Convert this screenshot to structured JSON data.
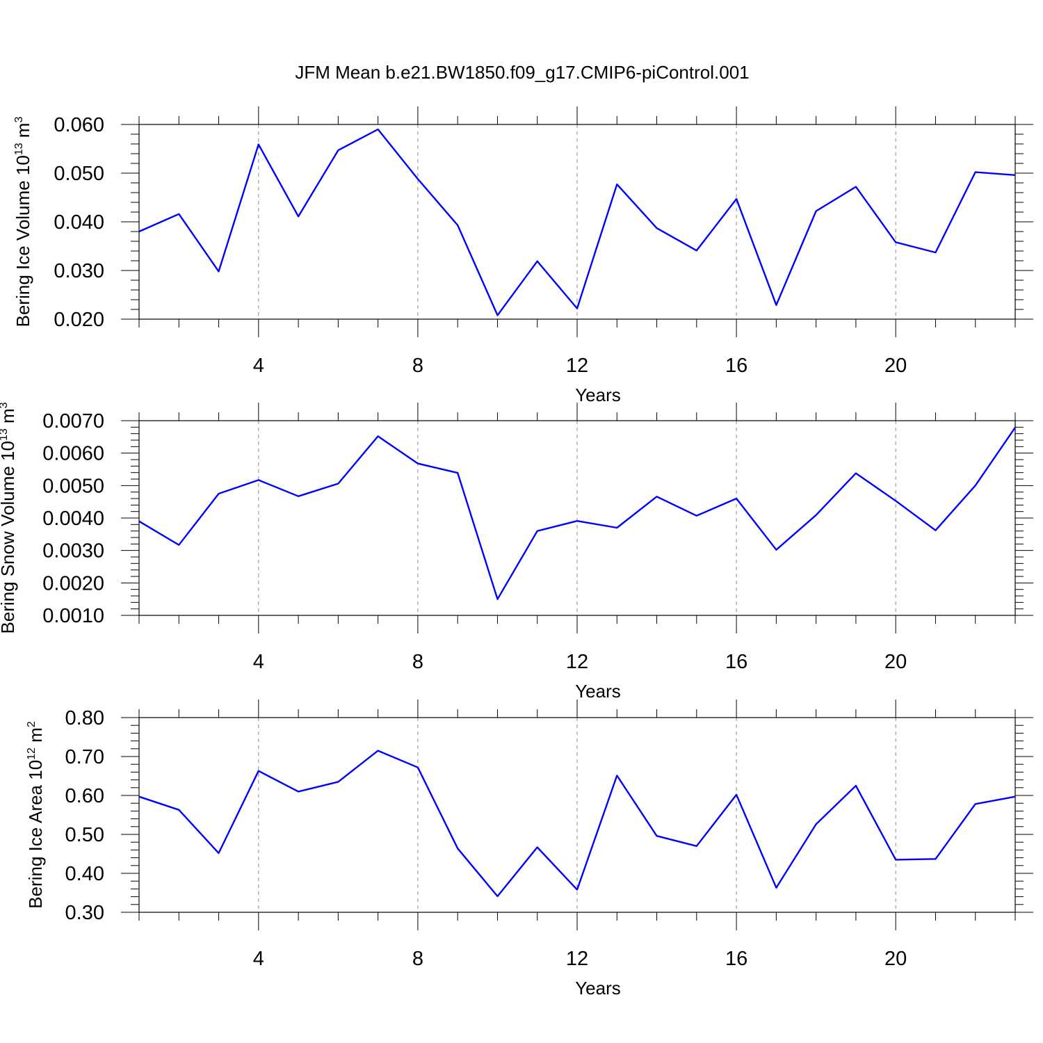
{
  "title": "JFM Mean b.e21.BW1850.f09_g17.CMIP6-piControl.001",
  "colors": {
    "line": "#0000ff",
    "grid": "#888888",
    "frame": "#000000"
  },
  "chart_data": [
    {
      "type": "line",
      "title": "JFM Mean b.e21.BW1850.f09_g17.CMIP6-piControl.001",
      "xlabel": "Years",
      "ylabel": {
        "base": "Bering Ice Volume 10",
        "exp": "13",
        "unit": " m",
        "unit_exp": "3"
      },
      "x": [
        1,
        2,
        3,
        4,
        5,
        6,
        7,
        8,
        9,
        10,
        11,
        12,
        13,
        14,
        15,
        16,
        17,
        18,
        19,
        20,
        21,
        22,
        23
      ],
      "series": [
        {
          "values": [
            0.038,
            0.0416,
            0.0298,
            0.0559,
            0.0411,
            0.0547,
            0.059,
            0.0488,
            0.0393,
            0.0208,
            0.0319,
            0.0222,
            0.0477,
            0.0387,
            0.0341,
            0.0447,
            0.0229,
            0.0422,
            0.0472,
            0.0358,
            0.0337,
            0.0502,
            0.0496
          ]
        }
      ],
      "xlim": [
        1,
        23
      ],
      "ylim": [
        0.02,
        0.06
      ],
      "xticks": [
        4,
        8,
        12,
        16,
        20
      ],
      "xtick_labels": [
        "4",
        "8",
        "12",
        "16",
        "20"
      ],
      "yticks": [
        0.02,
        0.03,
        0.04,
        0.05,
        0.06
      ],
      "ytick_labels": [
        "0.020",
        "0.030",
        "0.040",
        "0.050",
        "0.060"
      ],
      "y_minor_step": 0.002,
      "grid": "vertical dashed at major x ticks"
    },
    {
      "type": "line",
      "xlabel": "Years",
      "ylabel": {
        "base": "Bering Snow Volume 10",
        "exp": "13",
        "unit": " m",
        "unit_exp": "3"
      },
      "x": [
        1,
        2,
        3,
        4,
        5,
        6,
        7,
        8,
        9,
        10,
        11,
        12,
        13,
        14,
        15,
        16,
        17,
        18,
        19,
        20,
        21,
        22,
        23
      ],
      "series": [
        {
          "values": [
            0.0039,
            0.00317,
            0.00475,
            0.00517,
            0.00467,
            0.00506,
            0.00652,
            0.00568,
            0.00539,
            0.0015,
            0.0036,
            0.00391,
            0.0037,
            0.00466,
            0.00407,
            0.0046,
            0.00302,
            0.00409,
            0.00538,
            0.00453,
            0.00362,
            0.005,
            0.00679
          ]
        }
      ],
      "xlim": [
        1,
        23
      ],
      "ylim": [
        0.001,
        0.007
      ],
      "xticks": [
        4,
        8,
        12,
        16,
        20
      ],
      "xtick_labels": [
        "4",
        "8",
        "12",
        "16",
        "20"
      ],
      "yticks": [
        0.001,
        0.002,
        0.003,
        0.004,
        0.005,
        0.006,
        0.007
      ],
      "ytick_labels": [
        "0.0010",
        "0.0020",
        "0.0030",
        "0.0040",
        "0.0050",
        "0.0060",
        "0.0070"
      ],
      "y_minor_step": 0.0002,
      "grid": "vertical dashed at major x ticks"
    },
    {
      "type": "line",
      "xlabel": "Years",
      "ylabel": {
        "base": "Bering Ice Area 10",
        "exp": "12",
        "unit": " m",
        "unit_exp": "2"
      },
      "x": [
        1,
        2,
        3,
        4,
        5,
        6,
        7,
        8,
        9,
        10,
        11,
        12,
        13,
        14,
        15,
        16,
        17,
        18,
        19,
        20,
        21,
        22,
        23
      ],
      "series": [
        {
          "values": [
            0.597,
            0.563,
            0.452,
            0.663,
            0.61,
            0.635,
            0.715,
            0.672,
            0.464,
            0.341,
            0.467,
            0.358,
            0.651,
            0.496,
            0.47,
            0.602,
            0.363,
            0.526,
            0.625,
            0.435,
            0.437,
            0.578,
            0.597
          ]
        }
      ],
      "xlim": [
        1,
        23
      ],
      "ylim": [
        0.3,
        0.8
      ],
      "xticks": [
        4,
        8,
        12,
        16,
        20
      ],
      "xtick_labels": [
        "4",
        "8",
        "12",
        "16",
        "20"
      ],
      "yticks": [
        0.3,
        0.4,
        0.5,
        0.6,
        0.7,
        0.8
      ],
      "ytick_labels": [
        "0.30",
        "0.40",
        "0.50",
        "0.60",
        "0.70",
        "0.80"
      ],
      "y_minor_step": 0.02,
      "grid": "vertical dashed at major x ticks"
    }
  ]
}
